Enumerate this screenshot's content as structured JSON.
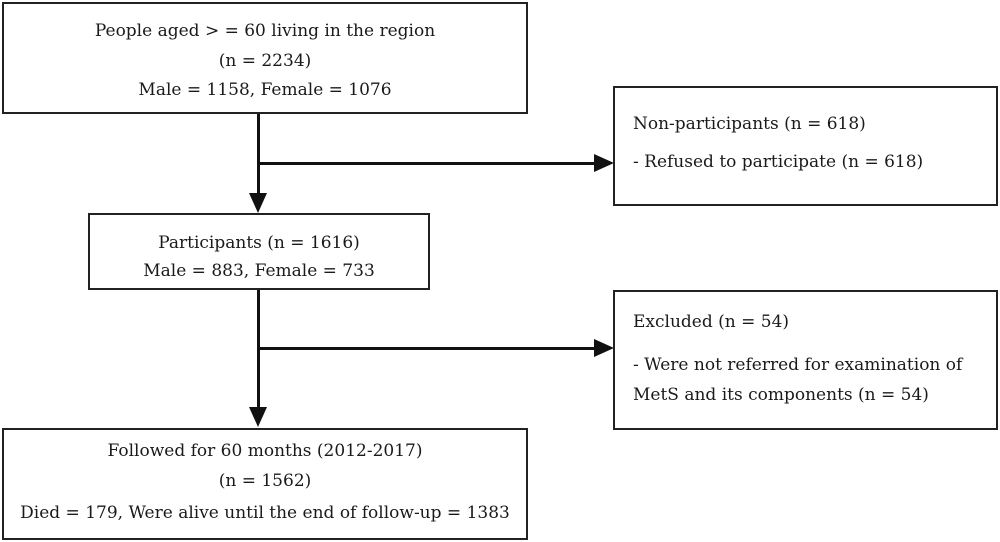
{
  "boxes": {
    "population": {
      "lines": [
        "People aged > = 60 living in the region",
        "(n = 2234)",
        "Male = 1158, Female = 1076"
      ]
    },
    "nonparticipants": {
      "lines": [
        "Non-participants (n = 618)",
        "- Refused to participate (n = 618)"
      ]
    },
    "participants": {
      "lines": [
        "Participants (n = 1616)",
        "Male = 883, Female = 733"
      ]
    },
    "excluded": {
      "lines": [
        "Excluded (n = 54)",
        "- Were not referred for examination of",
        "MetS and its components (n = 54)"
      ]
    },
    "followed": {
      "lines": [
        "Followed for 60 months (2012-2017)",
        "(n = 1562)",
        "Died = 179, Were alive until the end of follow-up = 1383"
      ]
    }
  },
  "colors": {
    "border": "#222222",
    "arrow": "#111111",
    "text": "#1a1a1a"
  }
}
